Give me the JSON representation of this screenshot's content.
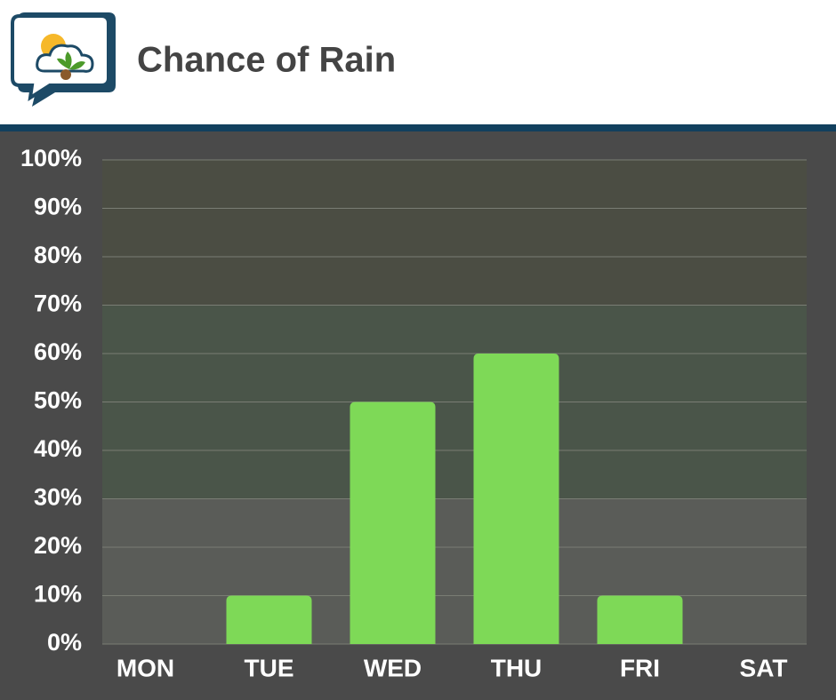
{
  "chart_data": {
    "type": "bar",
    "title": "Chance of Rain",
    "categories": [
      "MON",
      "TUE",
      "WED",
      "THU",
      "FRI",
      "SAT"
    ],
    "values": [
      0,
      10,
      50,
      60,
      10,
      0
    ],
    "color": "#7ed957",
    "ylim": [
      0,
      100
    ],
    "yticks": [
      {
        "value": 0,
        "label": "0%"
      },
      {
        "value": 10,
        "label": "10%"
      },
      {
        "value": 20,
        "label": "20%"
      },
      {
        "value": 30,
        "label": "30%"
      },
      {
        "value": 40,
        "label": "40%"
      },
      {
        "value": 50,
        "label": "50%"
      },
      {
        "value": 60,
        "label": "60%"
      },
      {
        "value": 70,
        "label": "70%"
      },
      {
        "value": 80,
        "label": "80%"
      },
      {
        "value": 90,
        "label": "90%"
      },
      {
        "value": 100,
        "label": "100%"
      }
    ],
    "grid": true
  }
}
